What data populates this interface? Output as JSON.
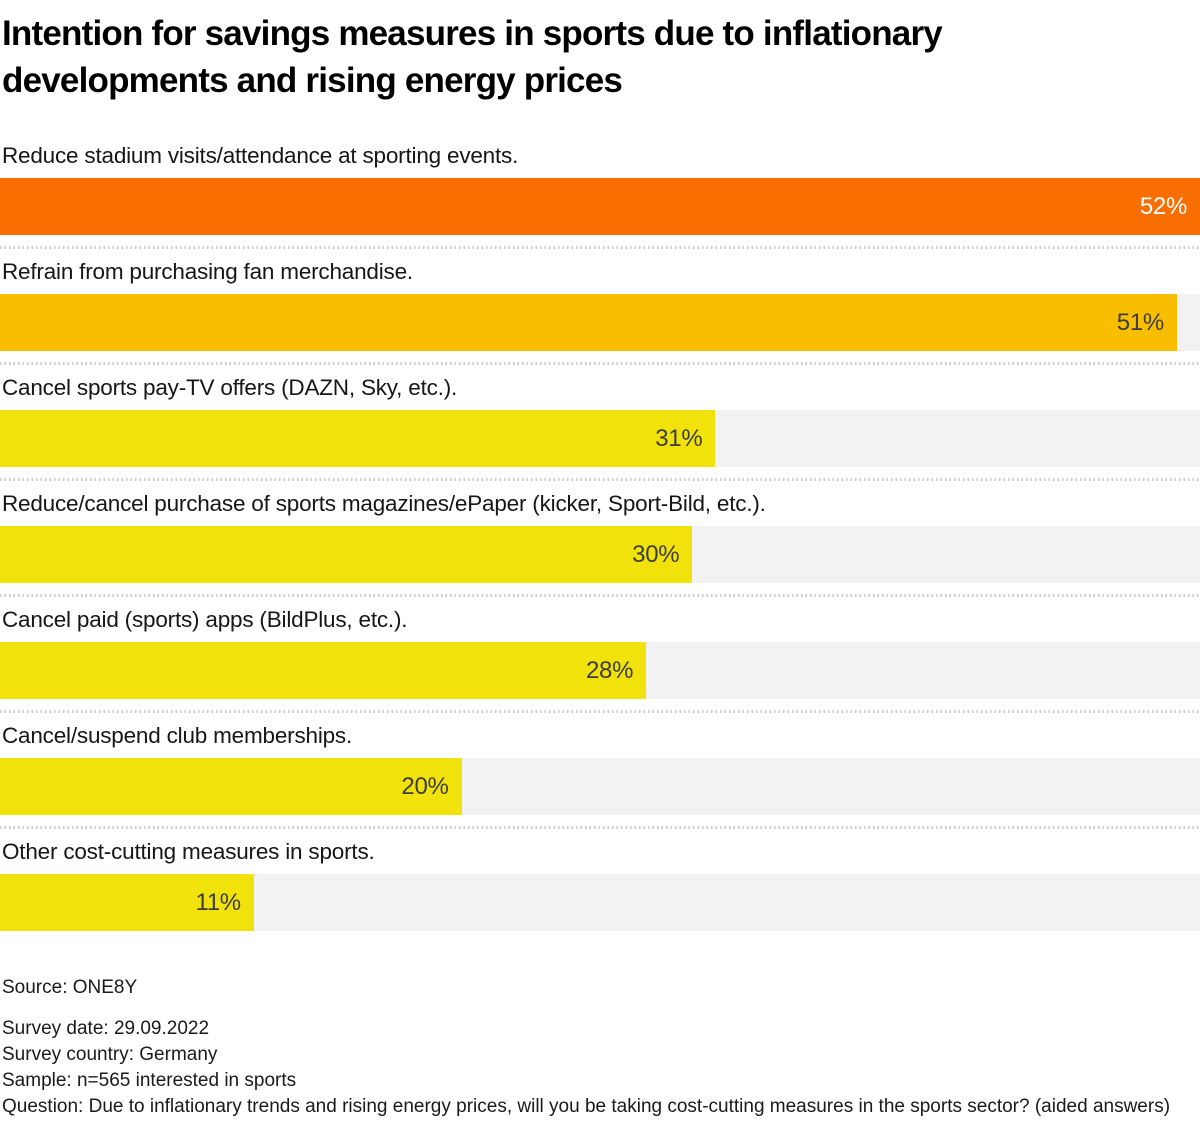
{
  "chart_data": {
    "type": "bar",
    "orientation": "horizontal",
    "title": "Intention for savings measures in sports due to inflationary developments and rising energy prices",
    "categories": [
      "Reduce stadium visits/attendance at sporting events.",
      "Refrain from purchasing fan merchandise.",
      "Cancel sports pay-TV offers (DAZN, Sky, etc.).",
      "Reduce/cancel purchase of sports magazines/ePaper (kicker, Sport-Bild, etc.).",
      "Cancel paid (sports) apps (BildPlus, etc.).",
      "Cancel/suspend club memberships.",
      "Other cost-cutting measures in sports."
    ],
    "values": [
      52,
      51,
      31,
      30,
      28,
      20,
      11
    ],
    "value_labels": [
      "52%",
      "51%",
      "31%",
      "30%",
      "28%",
      "20%",
      "11%"
    ],
    "value_suffix": "%",
    "xlim": [
      0,
      52
    ],
    "grid": false,
    "legend": false,
    "colors": {
      "bars": [
        "#F96E00",
        "#F9BE00",
        "#F0E20A",
        "#F0E20A",
        "#F0E20A",
        "#F0E20A",
        "#F0E20A"
      ],
      "value_text": [
        "#FFFFFF",
        "#3D3D3D",
        "#3D3D3D",
        "#3D3D3D",
        "#3D3D3D",
        "#3D3D3D",
        "#3D3D3D"
      ],
      "track": "#F2F2F2",
      "separator": "#C9C9C9"
    }
  },
  "footer": {
    "source": "Source: ONE8Y",
    "survey_date": "Survey date: 29.09.2022",
    "survey_country": "Survey country: Germany",
    "sample": "Sample: n=565 interested in sports",
    "question": "Question: Due to inflationary trends and rising energy prices, will you be taking cost-cutting measures in the sports sector? (aided answers)"
  }
}
